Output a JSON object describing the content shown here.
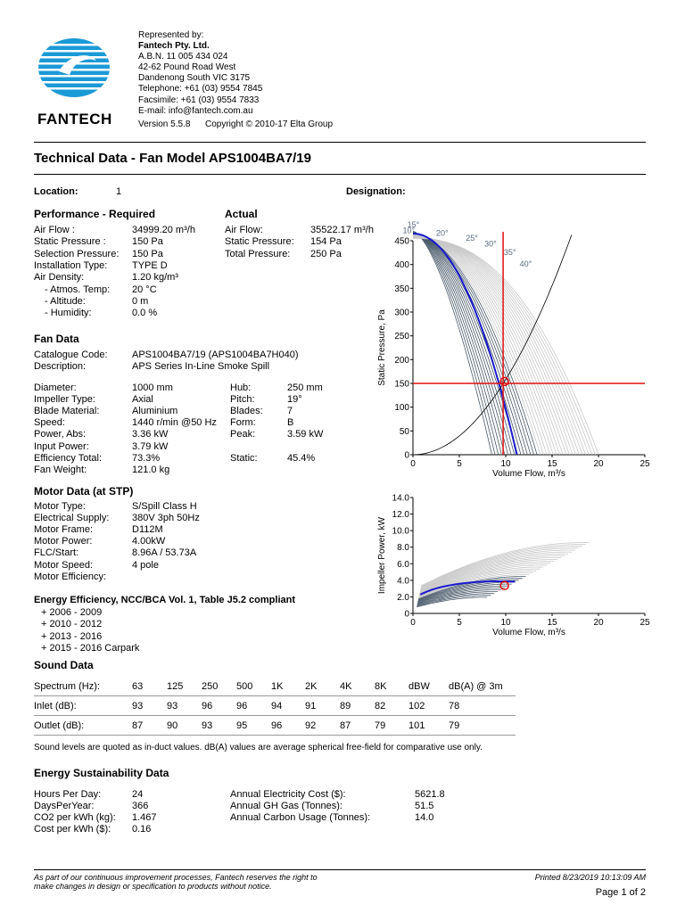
{
  "logo": {
    "name": "FANTECH"
  },
  "company": {
    "represented_by": "Represented by:",
    "name": "Fantech Pty. Ltd.",
    "abn": "A.B.N. 11 005 434 024",
    "addr1": "42-62 Pound Road West",
    "addr2": "Dandenong South VIC 3175",
    "tel": "Telephone: +61 (03) 9554 7845",
    "fax": "Facsimile: +61 (03) 9554 7833",
    "email": "E-mail: info@fantech.com.au",
    "version": "Version 5.5.8",
    "copyright": "Copyright © 2010-17 Elta Group"
  },
  "title": "Technical Data - Fan Model APS1004BA7/19",
  "location": {
    "label": "Location:",
    "value": "1"
  },
  "designation": {
    "label": "Designation:"
  },
  "performance": {
    "heading": "Performance - Required",
    "rows": [
      {
        "label": "Air Flow :",
        "value": "34999.20 m³/h"
      },
      {
        "label": "Static Pressure :",
        "value": "150 Pa"
      },
      {
        "label": "Selection Pressure:",
        "value": "150 Pa"
      },
      {
        "label": "Installation Type:",
        "value": "TYPE D"
      },
      {
        "label": "Air Density:",
        "value": "1.20 kg/m³"
      },
      {
        "label": "- Atmos. Temp:",
        "value": "20 °C"
      },
      {
        "label": "- Altitude:",
        "value": "0 m"
      },
      {
        "label": "- Humidity:",
        "value": "0.0 %"
      }
    ]
  },
  "actual": {
    "heading": "Actual",
    "rows": [
      {
        "label": "Air Flow:",
        "value": "35522.17 m³/h"
      },
      {
        "label": "Static Pressure:",
        "value": "154 Pa"
      },
      {
        "label": "Total Pressure:",
        "value": "250 Pa"
      }
    ]
  },
  "fan": {
    "heading": "Fan Data",
    "catalogue_label": "Catalogue Code:",
    "catalogue_value": "APS1004BA7/19   (APS1004BA7H040)",
    "description_label": "Description:",
    "description_value": "APS Series In-Line Smoke Spill",
    "left": [
      {
        "label": "Diameter:",
        "value": "1000 mm"
      },
      {
        "label": "Impeller Type:",
        "value": "Axial"
      },
      {
        "label": "Blade Material:",
        "value": "Aluminium"
      },
      {
        "label": "Speed:",
        "value": "1440 r/min  @50 Hz"
      },
      {
        "label": "Power, Abs:",
        "value": "3.36 kW"
      },
      {
        "label": "Input Power:",
        "value": "3.79 kW"
      },
      {
        "label": "Efficiency Total:",
        "value": "73.3%"
      },
      {
        "label": "Fan Weight:",
        "value": "121.0 kg"
      }
    ],
    "right": [
      {
        "label": "Hub:",
        "value": "250 mm"
      },
      {
        "label": "Pitch:",
        "value": "19°"
      },
      {
        "label": "Blades:",
        "value": "7"
      },
      {
        "label": "Form:",
        "value": "B"
      },
      {
        "label": "Peak:",
        "value": "3.59 kW"
      },
      {
        "label": "",
        "value": ""
      },
      {
        "label": "Static:",
        "value": "45.4%"
      }
    ]
  },
  "motor": {
    "heading": "Motor Data (at STP)",
    "rows": [
      {
        "label": "Motor Type:",
        "value": "S/Spill Class H"
      },
      {
        "label": "Electrical Supply:",
        "value": "380V 3ph 50Hz"
      },
      {
        "label": "Motor Frame:",
        "value": "D112M"
      },
      {
        "label": "Motor Power:",
        "value": "4.00kW"
      },
      {
        "label": "FLC/Start:",
        "value": "8.96A / 53.73A"
      },
      {
        "label": "Motor Speed:",
        "value": "4 pole"
      },
      {
        "label": "Motor Efficiency:",
        "value": ""
      }
    ]
  },
  "energy_eff": {
    "heading": "Energy Efficiency, NCC/BCA Vol. 1, Table J5.2 compliant",
    "items": [
      "2006 - 2009",
      "2010 - 2012",
      "2013 - 2016",
      "2015 - 2016 Carpark"
    ]
  },
  "sound": {
    "heading": "Sound Data",
    "headers": [
      "Spectrum (Hz):",
      "63",
      "125",
      "250",
      "500",
      "1K",
      "2K",
      "4K",
      "8K",
      "dBW",
      "dB(A) @ 3m"
    ],
    "rows": [
      [
        "Inlet (dB):",
        "93",
        "93",
        "96",
        "96",
        "94",
        "91",
        "89",
        "82",
        "102",
        "78"
      ],
      [
        "Outlet (dB):",
        "87",
        "90",
        "93",
        "95",
        "96",
        "92",
        "87",
        "79",
        "101",
        "79"
      ]
    ],
    "note": "Sound levels are quoted as in-duct values. dB(A) values are average spherical free-field for comparative use only."
  },
  "sustain": {
    "heading": "Energy Sustainability Data",
    "left": [
      {
        "label": "Hours Per Day:",
        "value": "24"
      },
      {
        "label": "DaysPerYear:",
        "value": "366"
      },
      {
        "label": "CO2 per kWh (kg):",
        "value": "1.467"
      },
      {
        "label": "Cost per kWh ($):",
        "value": "0.16"
      }
    ],
    "right": [
      {
        "label": "Annual Electricity Cost ($):",
        "value": "5621.8"
      },
      {
        "label": "Annual GH Gas (Tonnes):",
        "value": "51.5"
      },
      {
        "label": "Annual Carbon Usage (Tonnes):",
        "value": "14.0"
      }
    ]
  },
  "footer": {
    "line1": "As part of our continuous improvement processes, Fantech reserves the right to",
    "line2": "make changes in design or specification to products without notice.",
    "printed": "Printed 8/23/2019 10:13:09 AM",
    "page": "Page 1 of 2"
  },
  "chart_data": [
    {
      "type": "line",
      "xlabel": "Volume Flow, m³/s",
      "ylabel": "Static Pressure, Pa",
      "xlim": [
        0,
        25
      ],
      "ylim": [
        0,
        450
      ],
      "xticks": [
        "0",
        "5",
        "10",
        "15",
        "20",
        "25"
      ],
      "yticks": [
        "0",
        "50",
        "100",
        "150",
        "200",
        "250",
        "300",
        "350",
        "400",
        "450"
      ],
      "angle_labels": [
        "15°",
        "10°",
        "20°",
        "25°",
        "30°",
        "35°",
        "40°"
      ],
      "operating_point": {
        "x": 9.87,
        "y": 154
      },
      "required_flow": 9.72,
      "required_pressure": 150,
      "colors": {
        "selected": "#1a1acc",
        "operating": "#e01010",
        "family": "#4a5a6a",
        "faint": "#c8c8c8",
        "system": "#000000"
      }
    },
    {
      "type": "line",
      "xlabel": "Volume Flow, m³/s",
      "ylabel": "Impeller Power, kW",
      "xlim": [
        0,
        25
      ],
      "ylim": [
        0,
        14
      ],
      "xticks": [
        "0",
        "5",
        "10",
        "15",
        "20",
        "25"
      ],
      "yticks": [
        "0",
        "2.0",
        "4.0",
        "6.0",
        "8.0",
        "10.0",
        "12.0",
        "14.0"
      ],
      "operating_point": {
        "x": 9.87,
        "y": 3.36
      },
      "colors": {
        "selected": "#1a1acc",
        "operating": "#e01010",
        "family": "#4a5a6a",
        "faint": "#c8c8c8"
      }
    }
  ]
}
